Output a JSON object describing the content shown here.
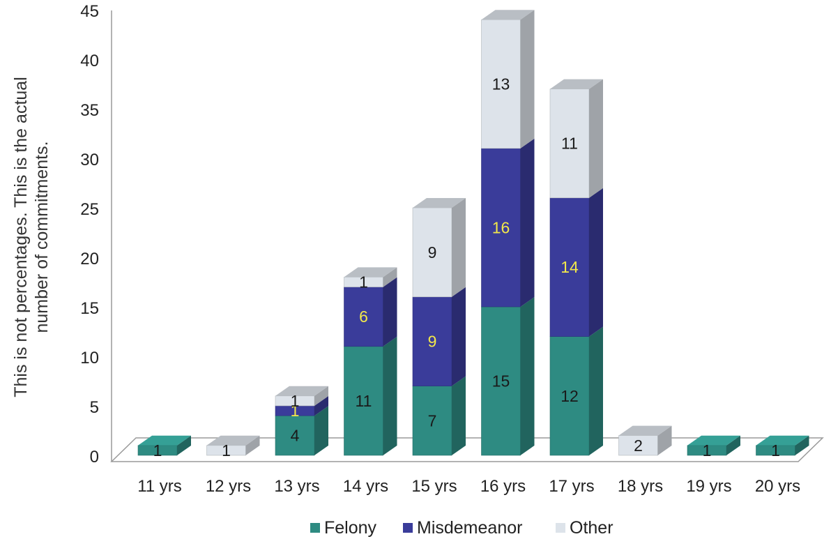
{
  "chart_data": {
    "type": "bar",
    "stacked": true,
    "three_d": true,
    "title": "",
    "xlabel": "",
    "ylabel_lines": [
      "This is not percentages. This is the actual",
      "number of commitments."
    ],
    "ylim": [
      0,
      45
    ],
    "yticks": [
      0,
      5,
      10,
      15,
      20,
      25,
      30,
      35,
      40,
      45
    ],
    "categories": [
      "11 yrs",
      "12 yrs",
      "13 yrs",
      "14 yrs",
      "15 yrs",
      "16 yrs",
      "17 yrs",
      "18 yrs",
      "19 yrs",
      "20 yrs"
    ],
    "series": [
      {
        "name": "Felony",
        "color": "#2e8b82",
        "label_color": "#1a1a1a",
        "values": [
          1,
          0,
          4,
          11,
          7,
          15,
          12,
          0,
          1,
          1
        ]
      },
      {
        "name": "Misdemeanor",
        "color": "#3a3c9a",
        "label_color": "#f2e84a",
        "values": [
          0,
          0,
          1,
          6,
          9,
          16,
          14,
          0,
          0,
          0
        ]
      },
      {
        "name": "Other",
        "color": "#dde3ea",
        "label_color": "#1a1a1a",
        "values": [
          0,
          1,
          1,
          1,
          9,
          13,
          11,
          2,
          0,
          0
        ]
      }
    ],
    "grid": false,
    "legend_position": "bottom"
  }
}
